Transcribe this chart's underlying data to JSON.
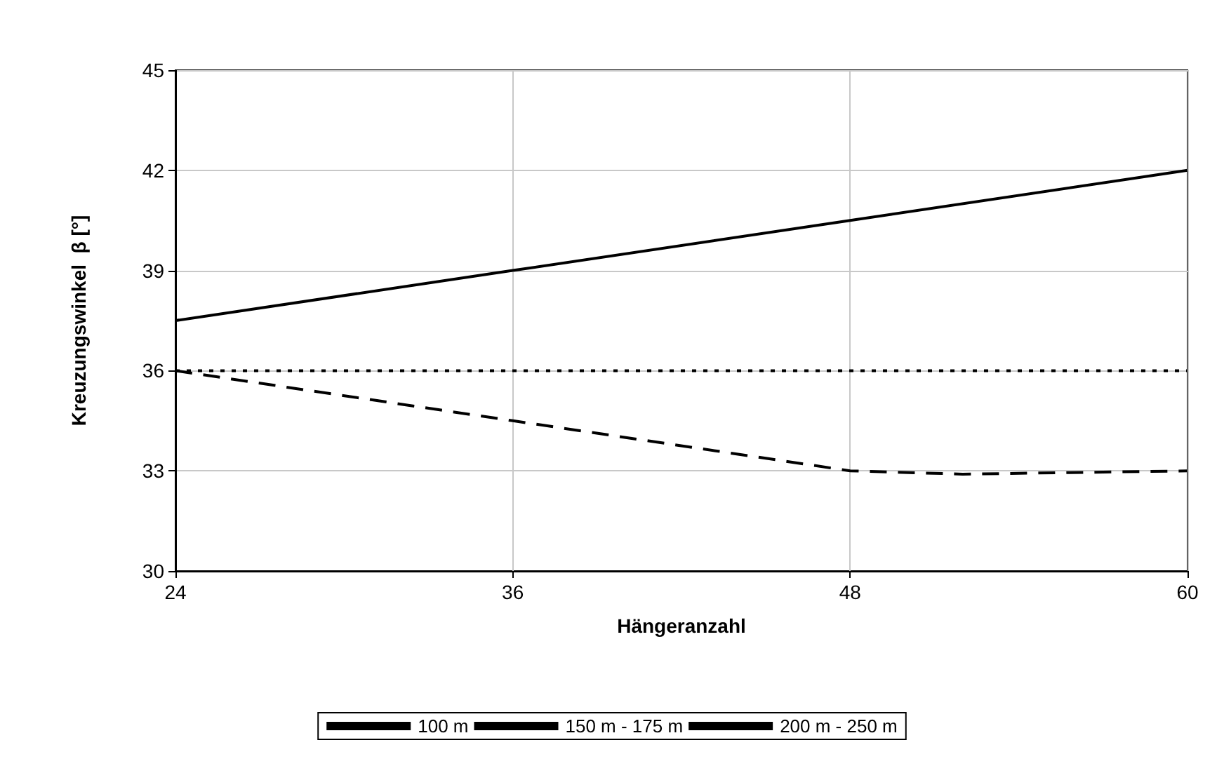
{
  "chart_data": {
    "type": "line",
    "xlabel": "Hängeranzahl",
    "ylabel": "Kreuzungswinkel  β [°]",
    "x": [
      24,
      36,
      48,
      60
    ],
    "series": [
      {
        "name": "100 m",
        "color": "#000000",
        "line_style": "solid",
        "values": [
          37.5,
          39,
          40.5,
          42
        ]
      },
      {
        "name": "150 m - 175 m",
        "color": "#000000",
        "line_style": "dotted",
        "values": [
          36,
          36,
          36,
          36
        ]
      },
      {
        "name": "200 m - 250 m",
        "color": "#000000",
        "line_style": "dashed",
        "x": [
          24,
          36,
          48,
          52,
          60
        ],
        "values": [
          36,
          34.5,
          33,
          32.9,
          33
        ]
      }
    ],
    "xlim": [
      24,
      60
    ],
    "xticks": [
      24,
      36,
      48,
      60
    ],
    "ylim": [
      30,
      45
    ],
    "yticks": [
      30,
      33,
      36,
      39,
      42,
      45
    ],
    "grid": true,
    "legend": "bottom",
    "marker": "none"
  }
}
